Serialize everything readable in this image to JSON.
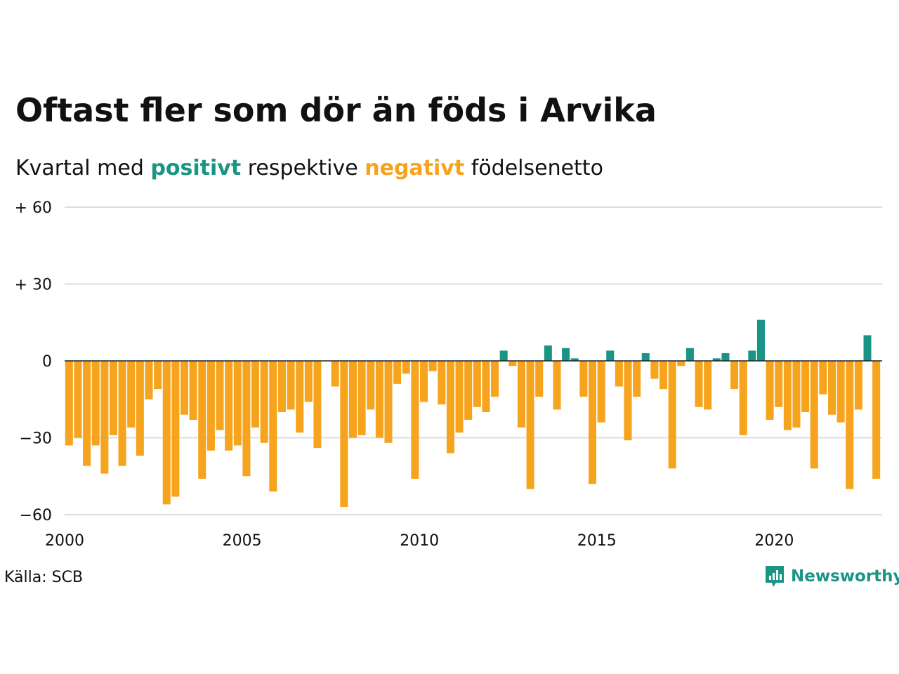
{
  "title": "Oftast fler som dör än föds i Arvika",
  "subtitle": {
    "prefix": "Kvartal med",
    "positive_word": "positivt",
    "middle": "respektive",
    "negative_word": "negativt",
    "suffix": "födelsenetto"
  },
  "source": "Källa: SCB",
  "brand": "Newsworthy",
  "colors": {
    "positive": "#1a9485",
    "negative": "#f6a31d",
    "grid": "#dddddd",
    "zero": "#222222"
  },
  "chart_data": {
    "type": "bar",
    "y_ticks": [
      {
        "value": 60,
        "label": "+ 60"
      },
      {
        "value": 30,
        "label": "+ 30"
      },
      {
        "value": 0,
        "label": "0"
      },
      {
        "value": -30,
        "label": "−30"
      },
      {
        "value": -60,
        "label": "−60"
      }
    ],
    "x_ticks": [
      {
        "value": 2000,
        "label": "2000"
      },
      {
        "value": 2005,
        "label": "2005"
      },
      {
        "value": 2010,
        "label": "2010"
      },
      {
        "value": 2015,
        "label": "2015"
      },
      {
        "value": 2020,
        "label": "2020"
      }
    ],
    "ylim": [
      -60,
      60
    ],
    "xlim": [
      2000,
      2023.25
    ],
    "grid": true,
    "start_period": "2000 Q1",
    "values": [
      -33,
      -30,
      -41,
      -33,
      -44,
      -29,
      -41,
      -26,
      -37,
      -15,
      -11,
      -56,
      -53,
      -21,
      -23,
      -46,
      -35,
      -27,
      -35,
      -33,
      -45,
      -26,
      -32,
      -51,
      -20,
      -19,
      -28,
      -16,
      -34,
      0,
      -10,
      -57,
      -30,
      -29,
      -19,
      -30,
      -32,
      -9,
      -5,
      -46,
      -16,
      -4,
      -17,
      -36,
      -28,
      -23,
      -18,
      -20,
      -14,
      4,
      -2,
      -26,
      -50,
      -14,
      6,
      -19,
      5,
      1,
      -14,
      -48,
      -24,
      4,
      -10,
      -31,
      -14,
      3,
      -7,
      -11,
      -42,
      -2,
      5,
      -18,
      -19,
      1,
      3,
      -11,
      -29,
      4,
      16,
      -23,
      -18,
      -27,
      -26,
      -20,
      -42,
      -13,
      -21,
      -24,
      -50,
      -19,
      10,
      -46
    ]
  }
}
